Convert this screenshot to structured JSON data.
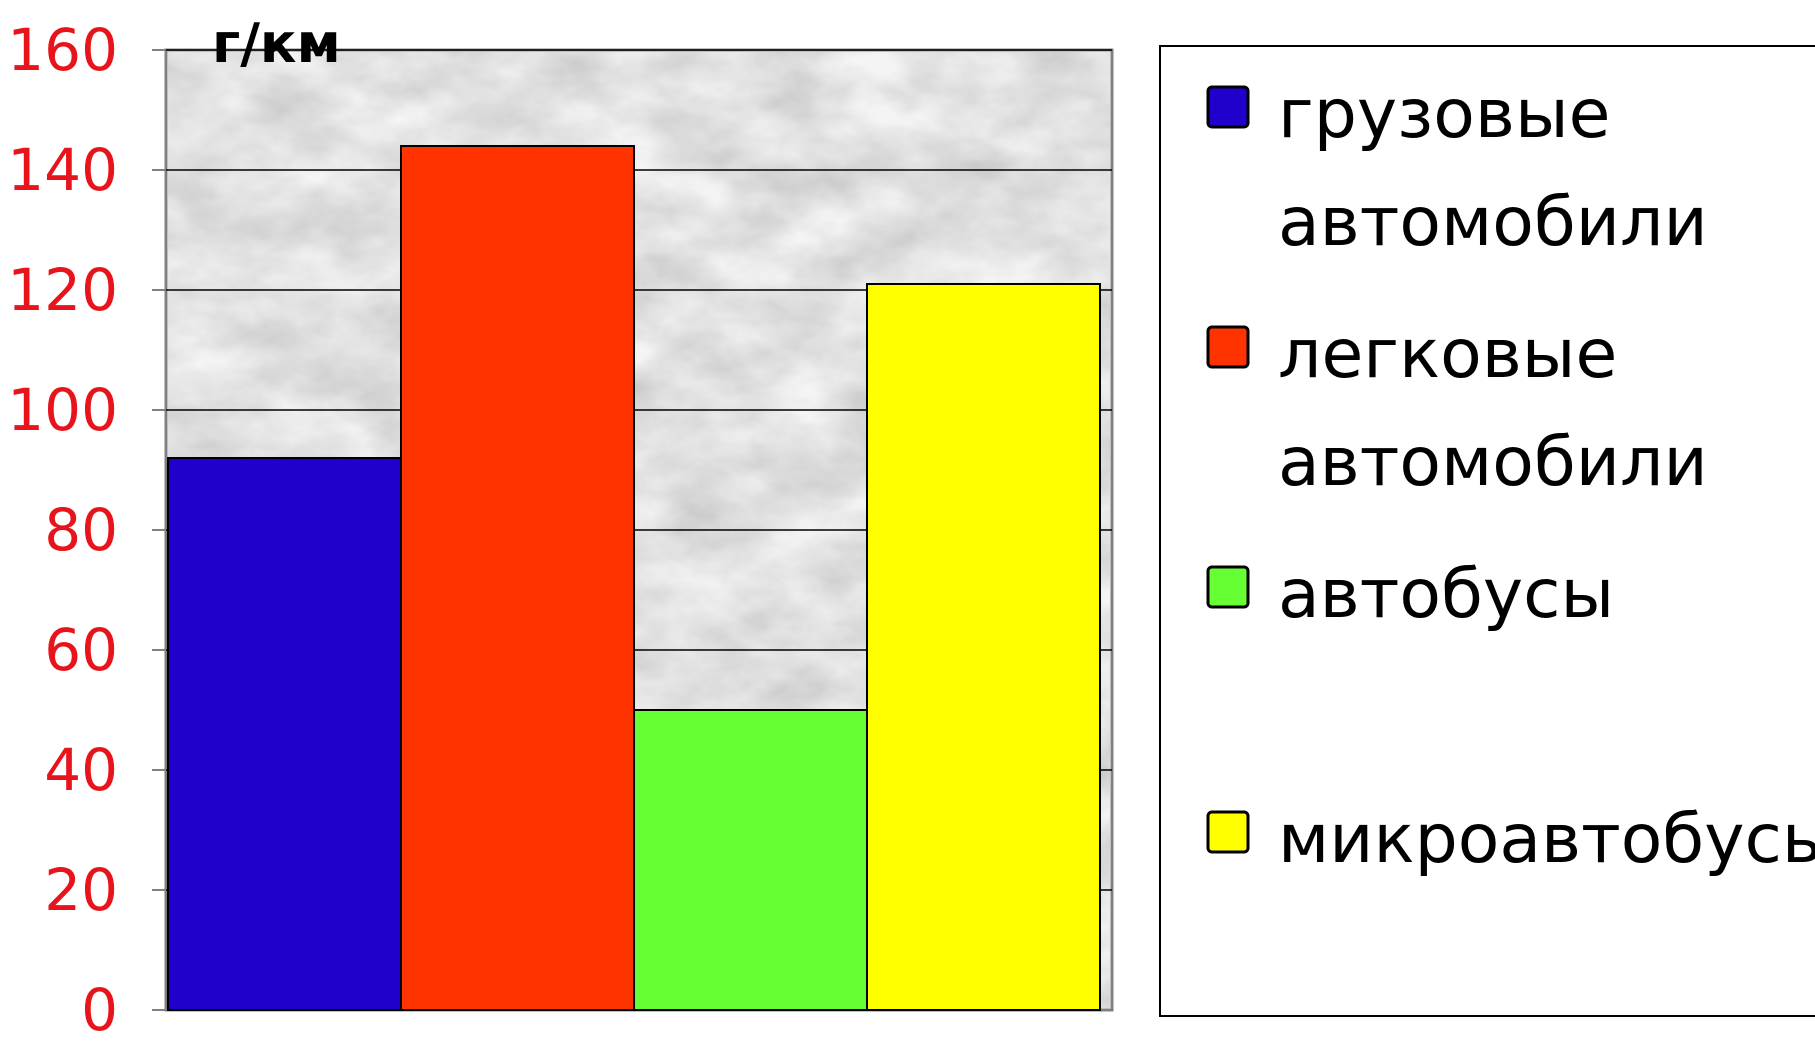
{
  "chart_data": {
    "type": "bar",
    "unit_label": "г/км",
    "yticks": [
      "0",
      "20",
      "40",
      "60",
      "80",
      "100",
      "120",
      "140",
      "160"
    ],
    "ylim": [
      0,
      160
    ],
    "grid": true,
    "legend_position": "right",
    "categories": [
      "грузовые автомобили",
      "легковые автомобили",
      "автобусы",
      "микроавтобусы"
    ],
    "values": [
      92,
      144,
      50,
      121
    ],
    "colors": [
      "#1f00cc",
      "#ff3300",
      "#66ff33",
      "#ffff00"
    ],
    "legend": [
      {
        "lines": [
          "грузовые",
          "автомобили"
        ],
        "color": "#1f00cc"
      },
      {
        "lines": [
          "легковые",
          "автомобили"
        ],
        "color": "#ff3300"
      },
      {
        "lines": [
          "автобусы"
        ],
        "color": "#66ff33"
      },
      {
        "lines": [
          "микроавтобусы"
        ],
        "color": "#ffff00"
      }
    ]
  }
}
